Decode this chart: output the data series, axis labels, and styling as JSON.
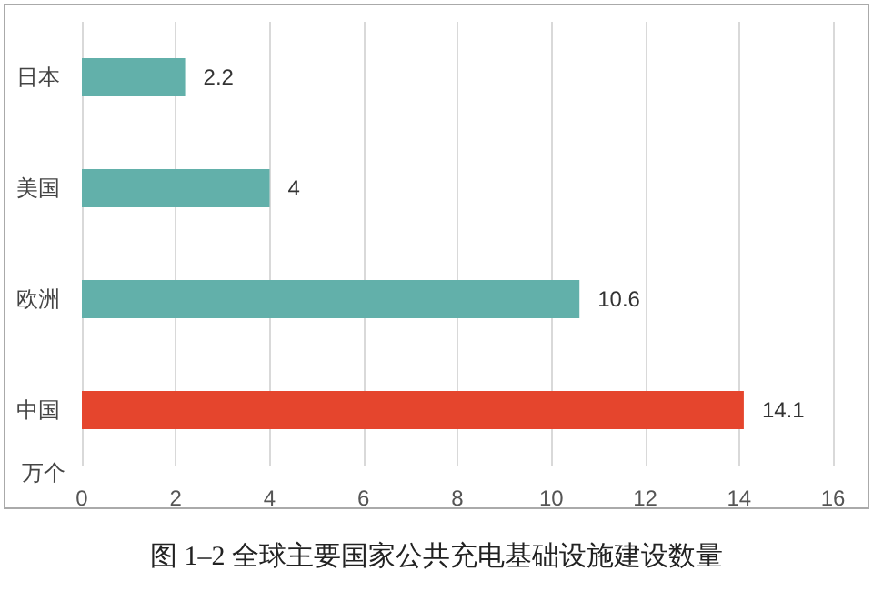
{
  "chart_data": {
    "type": "bar",
    "orientation": "horizontal",
    "title": "图 1–2 全球主要国家公共充电基础设施建设数量",
    "xlabel": "万个",
    "categories": [
      "日本",
      "美国",
      "欧洲",
      "中国"
    ],
    "values": [
      2.2,
      4,
      10.6,
      14.1
    ],
    "colors": [
      "#62b0aa",
      "#62b0aa",
      "#62b0aa",
      "#e5452d"
    ],
    "xlim": [
      0,
      16
    ],
    "xticks": [
      0,
      2,
      4,
      6,
      8,
      10,
      12,
      14,
      16
    ],
    "grid": "x",
    "data_labels": true
  }
}
